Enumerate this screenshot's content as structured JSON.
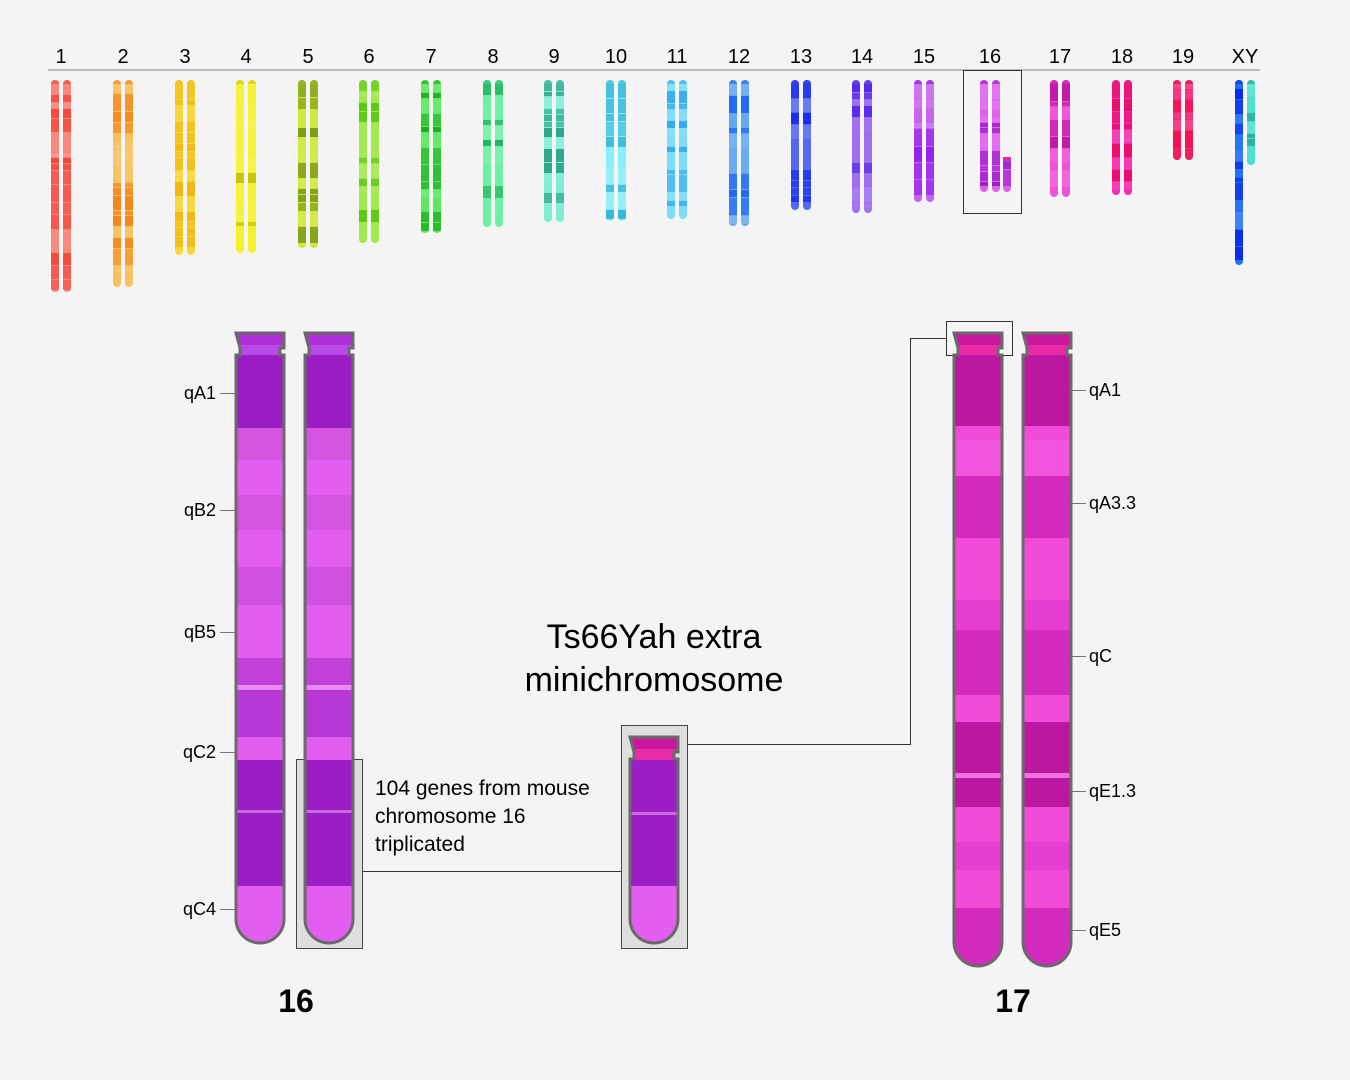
{
  "karyotype": [
    {
      "label": "1",
      "light": "#f8867c",
      "dark": "#f4443a"
    },
    {
      "label": "2",
      "light": "#f7c05a",
      "dark": "#f5871c"
    },
    {
      "label": "3",
      "light": "#f6d83a",
      "dark": "#f2b812"
    },
    {
      "label": "4",
      "light": "#f4f22a",
      "dark": "#c8c40a"
    },
    {
      "label": "5",
      "light": "#cfe83e",
      "dark": "#6e8e12"
    },
    {
      "label": "6",
      "light": "#9ee846",
      "dark": "#52c414"
    },
    {
      "label": "7",
      "light": "#5ee85e",
      "dark": "#1cae1c"
    },
    {
      "label": "8",
      "light": "#6cf0a4",
      "dark": "#1eb25a"
    },
    {
      "label": "9",
      "light": "#7ceed4",
      "dark": "#26a086"
    },
    {
      "label": "10",
      "light": "#84eef8",
      "dark": "#30b2d4"
    },
    {
      "label": "11",
      "light": "#7edcf8",
      "dark": "#2ea8f0"
    },
    {
      "label": "12",
      "light": "#64a8f4",
      "dark": "#1e68f2"
    },
    {
      "label": "13",
      "light": "#5468f0",
      "dark": "#1a28ee"
    },
    {
      "label": "14",
      "light": "#9c6af0",
      "dark": "#4a20ea"
    },
    {
      "label": "15",
      "light": "#c664ee",
      "dark": "#8c18ec"
    },
    {
      "label": "16",
      "light": "#e060f0",
      "dark": "#9c1ec4"
    },
    {
      "label": "17",
      "light": "#f04cd8",
      "dark": "#bb17a0"
    },
    {
      "label": "18",
      "light": "#f42cae",
      "dark": "#ea0c6c"
    },
    {
      "label": "19",
      "light": "#f42a78",
      "dark": "#f0124e"
    },
    {
      "label": "XY",
      "light": "#1e70f4",
      "dark": "#0c28e8",
      "light2": "#46e0d0",
      "dark2": "#2aa090"
    }
  ],
  "highlighted_karyotype": "16",
  "chromosome_16": {
    "label": "16",
    "bands": [
      "qA1",
      "qB2",
      "qB5",
      "qC2",
      "qC4"
    ]
  },
  "chromosome_17": {
    "label": "17",
    "bands": [
      "qA1",
      "qA3.3",
      "qC",
      "qE1.3",
      "qE5"
    ]
  },
  "minichromosome": {
    "title_line1": "Ts66Yah extra",
    "title_line2": "minichromosome"
  },
  "annotation": {
    "line1": "104 genes from mouse",
    "line2": "chromosome 16",
    "line3": "triplicated"
  }
}
